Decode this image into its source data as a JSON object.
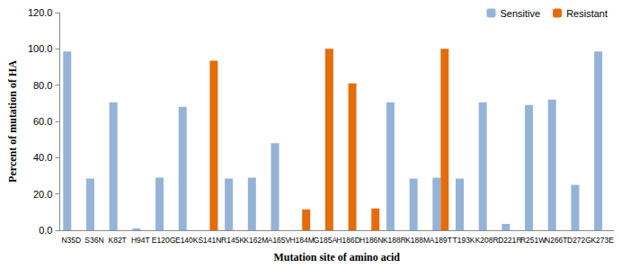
{
  "chart_data": {
    "type": "bar",
    "x_label": "Mutation site of amino acid",
    "y_label": "Percent of mutation of HA",
    "categories": [
      "N35D",
      "S36N",
      "K82T",
      "H94T",
      "E120G",
      "E140K",
      "S141N",
      "R145K",
      "K162M",
      "A165V",
      "H184M",
      "G185A",
      "H186D",
      "H186N",
      "K188R",
      "K188M",
      "A189T",
      "T193K",
      "K208R",
      "D221R",
      "R251W",
      "N266T",
      "D272G",
      "K273E"
    ],
    "series": [
      {
        "name": "Sensitive",
        "color": "#95b3d7",
        "values": [
          98.5,
          28.5,
          70.5,
          1.0,
          29,
          68,
          null,
          28.5,
          29,
          48,
          null,
          null,
          null,
          null,
          70.5,
          28.5,
          29,
          28.5,
          70.5,
          3.5,
          69,
          72,
          25,
          98.5
        ]
      },
      {
        "name": "Resistant",
        "color": "#e46c0a",
        "values": [
          null,
          null,
          null,
          null,
          null,
          null,
          93.5,
          null,
          null,
          null,
          11.5,
          100,
          81,
          12,
          null,
          null,
          100,
          null,
          null,
          null,
          null,
          null,
          null,
          null
        ]
      }
    ],
    "ylim": [
      0,
      120
    ],
    "yticks": [
      {
        "value": 0,
        "label": "0.0"
      },
      {
        "value": 20,
        "label": "20.0"
      },
      {
        "value": 40,
        "label": "40.0"
      },
      {
        "value": 60,
        "label": "60.0"
      },
      {
        "value": 80,
        "label": "80.0"
      },
      {
        "value": 100,
        "label": "100.0"
      },
      {
        "value": 120,
        "label": "120.0"
      }
    ],
    "grid": false,
    "legend": "top-right",
    "data_labels": false
  }
}
